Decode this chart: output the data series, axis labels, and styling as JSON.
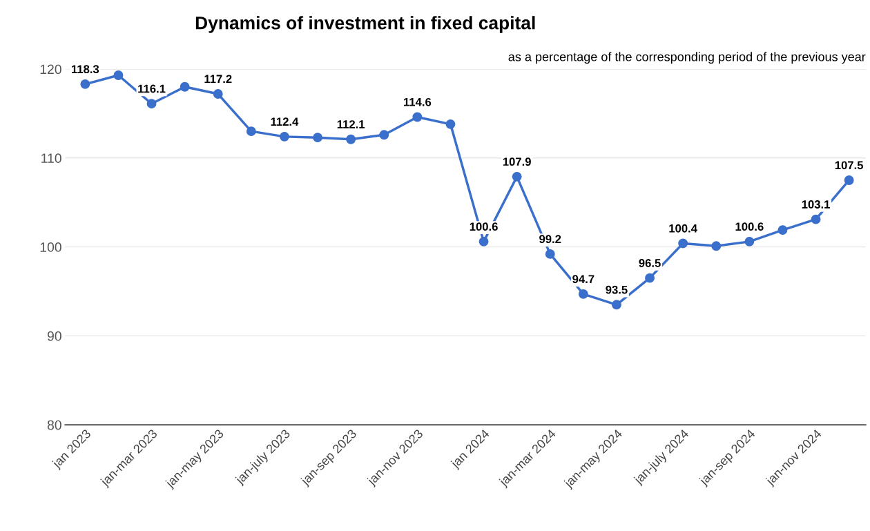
{
  "chart_data": {
    "type": "line",
    "title": "Dynamics of investment in fixed capital",
    "subtitle": "as a percentage of the corresponding period of the previous year",
    "categories": [
      "jan 2023",
      null,
      "jan-mar 2023",
      null,
      "jan-may 2023",
      null,
      "jan-july 2023",
      null,
      "jan-sep 2023",
      null,
      "jan-nov 2023",
      null,
      "jan 2024",
      null,
      "jan-mar 2024",
      null,
      "jan-may 2024",
      null,
      "jan-july 2024",
      null,
      "jan-sep 2024",
      null,
      "jan-nov 2024",
      null
    ],
    "series": [
      {
        "color": "#3a6fcc",
        "values": [
          118.3,
          119.3,
          116.1,
          118.0,
          117.2,
          113.0,
          112.4,
          112.3,
          112.1,
          112.6,
          114.6,
          113.8,
          100.6,
          107.9,
          99.2,
          94.7,
          93.5,
          96.5,
          100.4,
          100.1,
          100.6,
          101.9,
          103.1,
          107.5
        ],
        "value_labels": [
          "118.3",
          null,
          "116.1",
          null,
          "117.2",
          null,
          "112.4",
          null,
          "112.1",
          null,
          "114.6",
          null,
          "100.6",
          "107.9",
          "99.2",
          "94.7",
          "93.5",
          "96.5",
          "100.4",
          null,
          "100.6",
          null,
          "103.1",
          "107.5"
        ]
      }
    ],
    "ylim": [
      80,
      120
    ],
    "yticks": [
      80,
      90,
      100,
      110,
      120
    ],
    "grid": "y",
    "marker": "circle",
    "line_style": "solid",
    "legend": false
  }
}
